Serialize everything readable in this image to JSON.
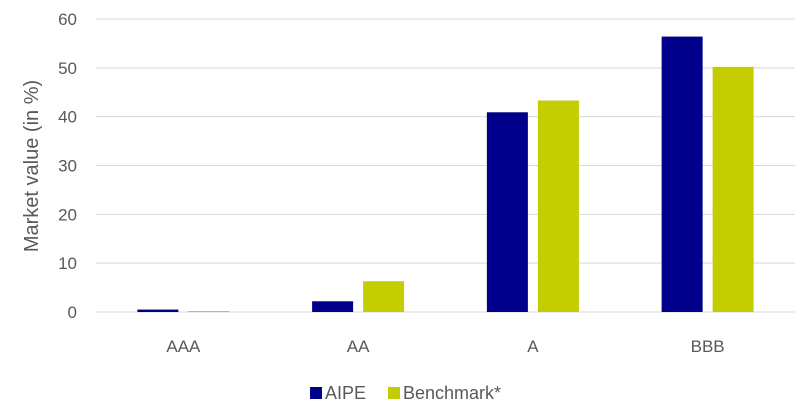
{
  "chart_data": {
    "type": "bar",
    "categories": [
      "AAA",
      "AA",
      "A",
      "BBB"
    ],
    "series": [
      {
        "name": "AIPE",
        "color": "#00008b",
        "values": [
          0.5,
          2.2,
          40.9,
          56.4
        ]
      },
      {
        "name": "Benchmark*",
        "color": "#c3cd00",
        "values": [
          0.2,
          6.3,
          43.3,
          50.2
        ]
      }
    ],
    "title": "",
    "xlabel": "",
    "ylabel": "Market value (in %)",
    "ylim": [
      0,
      60
    ],
    "yticks": [
      0,
      10,
      20,
      30,
      40,
      50,
      60
    ],
    "grid": true,
    "legend_position": "bottom"
  }
}
